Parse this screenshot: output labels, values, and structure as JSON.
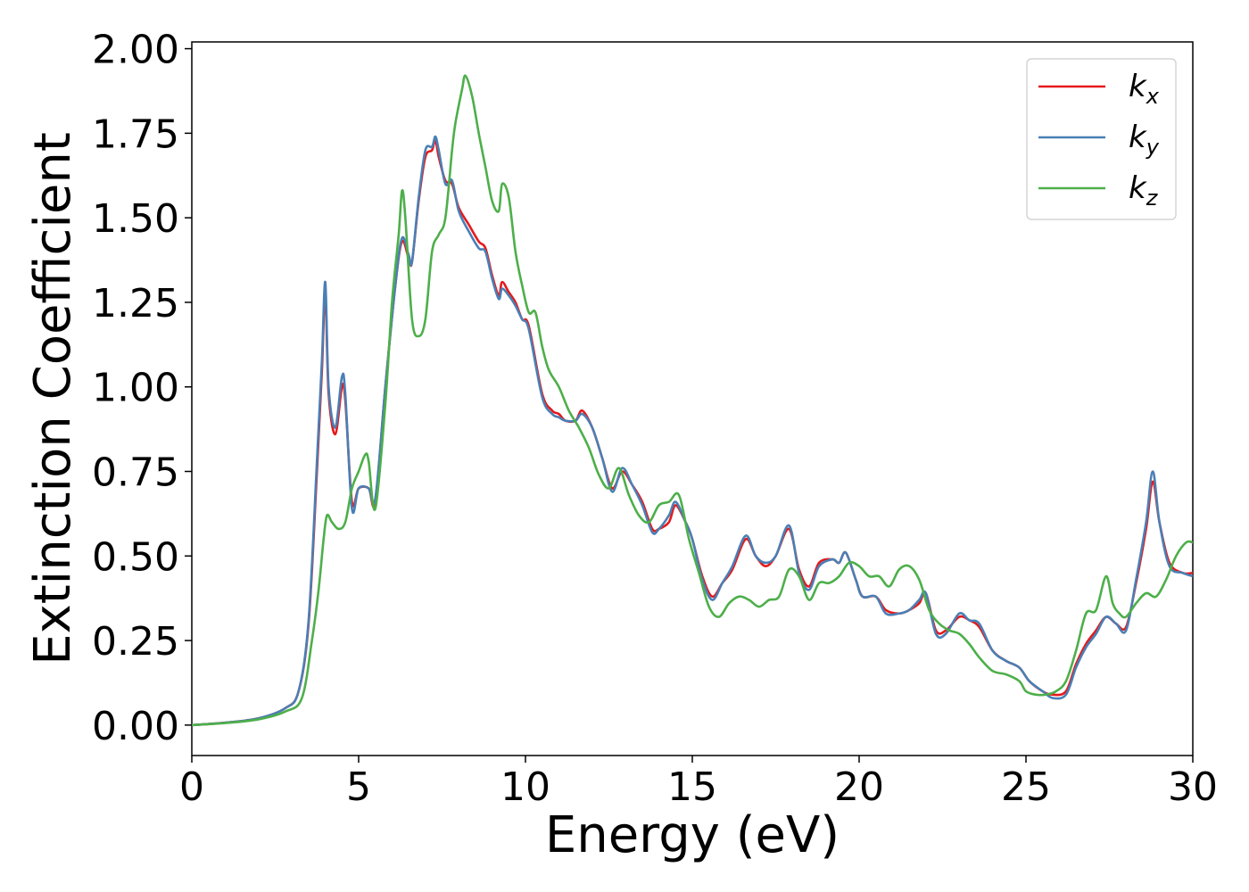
{
  "chart_data": {
    "type": "line",
    "xlabel": "Energy (eV)",
    "ylabel": "Extinction Coefficient",
    "xlim": [
      0,
      30
    ],
    "ylim": [
      -0.09,
      2.02
    ],
    "xticks": [
      0,
      5,
      10,
      15,
      20,
      25,
      30
    ],
    "xtick_labels": [
      "0",
      "5",
      "10",
      "15",
      "20",
      "25",
      "30"
    ],
    "yticks": [
      0.0,
      0.25,
      0.5,
      0.75,
      1.0,
      1.25,
      1.5,
      1.75,
      2.0
    ],
    "ytick_labels": [
      "0.00",
      "0.25",
      "0.50",
      "0.75",
      "1.00",
      "1.25",
      "1.50",
      "1.75",
      "2.00"
    ],
    "grid": false,
    "legend_position": "top-right",
    "series": [
      {
        "name": "k_x",
        "label_base": "k",
        "label_sub": "x",
        "color": "#e41a1c",
        "x": [
          0,
          1,
          2,
          2.8,
          3.2,
          3.5,
          3.75,
          3.9,
          4.0,
          4.1,
          4.3,
          4.5,
          4.6,
          4.8,
          5.0,
          5.3,
          5.5,
          5.8,
          6.1,
          6.3,
          6.5,
          6.6,
          6.8,
          7.0,
          7.2,
          7.3,
          7.4,
          7.6,
          7.8,
          8.0,
          8.3,
          8.6,
          8.8,
          9.0,
          9.2,
          9.3,
          9.5,
          9.7,
          9.9,
          10.1,
          10.5,
          10.8,
          11.0,
          11.2,
          11.5,
          11.7,
          12.0,
          12.3,
          12.6,
          12.9,
          13.2,
          13.5,
          13.8,
          14.0,
          14.3,
          14.5,
          14.8,
          15.0,
          15.3,
          15.6,
          15.9,
          16.2,
          16.6,
          16.9,
          17.2,
          17.5,
          17.9,
          18.2,
          18.5,
          18.8,
          19.2,
          19.4,
          19.6,
          19.9,
          20.1,
          20.5,
          20.8,
          21.2,
          21.5,
          21.8,
          22.0,
          22.3,
          22.6,
          23.0,
          23.3,
          23.6,
          24.0,
          24.4,
          24.8,
          25.1,
          25.5,
          25.8,
          26.2,
          26.5,
          26.8,
          27.1,
          27.4,
          27.7,
          28.0,
          28.3,
          28.6,
          28.8,
          29.0,
          29.3,
          29.7,
          30.0
        ],
        "values": [
          0.0,
          0.007,
          0.02,
          0.05,
          0.1,
          0.3,
          0.75,
          1.05,
          1.28,
          0.98,
          0.86,
          1.0,
          0.96,
          0.66,
          0.7,
          0.7,
          0.66,
          1.0,
          1.3,
          1.43,
          1.38,
          1.37,
          1.55,
          1.68,
          1.7,
          1.73,
          1.68,
          1.61,
          1.6,
          1.53,
          1.48,
          1.43,
          1.41,
          1.33,
          1.27,
          1.31,
          1.28,
          1.25,
          1.2,
          1.18,
          0.98,
          0.93,
          0.92,
          0.9,
          0.9,
          0.93,
          0.88,
          0.79,
          0.7,
          0.75,
          0.71,
          0.66,
          0.58,
          0.58,
          0.6,
          0.65,
          0.6,
          0.55,
          0.44,
          0.38,
          0.42,
          0.46,
          0.55,
          0.5,
          0.47,
          0.5,
          0.58,
          0.46,
          0.41,
          0.48,
          0.49,
          0.48,
          0.51,
          0.43,
          0.38,
          0.38,
          0.34,
          0.33,
          0.34,
          0.36,
          0.39,
          0.28,
          0.28,
          0.32,
          0.31,
          0.29,
          0.22,
          0.19,
          0.17,
          0.13,
          0.1,
          0.09,
          0.1,
          0.18,
          0.24,
          0.28,
          0.32,
          0.3,
          0.29,
          0.42,
          0.58,
          0.72,
          0.6,
          0.48,
          0.45,
          0.45
        ]
      },
      {
        "name": "k_y",
        "label_base": "k",
        "label_sub": "y",
        "color": "#4a7fb5",
        "x": [
          0,
          1,
          2,
          2.8,
          3.2,
          3.5,
          3.75,
          3.9,
          4.0,
          4.1,
          4.3,
          4.5,
          4.6,
          4.8,
          5.0,
          5.3,
          5.5,
          5.8,
          6.1,
          6.3,
          6.5,
          6.6,
          6.8,
          7.0,
          7.2,
          7.3,
          7.4,
          7.6,
          7.8,
          8.0,
          8.3,
          8.6,
          8.8,
          9.0,
          9.2,
          9.3,
          9.5,
          9.7,
          9.9,
          10.1,
          10.5,
          10.8,
          11.0,
          11.2,
          11.5,
          11.7,
          12.0,
          12.3,
          12.6,
          12.9,
          13.2,
          13.5,
          13.8,
          14.0,
          14.3,
          14.5,
          14.8,
          15.0,
          15.3,
          15.6,
          15.9,
          16.2,
          16.6,
          16.9,
          17.2,
          17.5,
          17.9,
          18.2,
          18.5,
          18.8,
          19.2,
          19.4,
          19.6,
          19.9,
          20.1,
          20.5,
          20.8,
          21.2,
          21.5,
          21.8,
          22.0,
          22.3,
          22.6,
          23.0,
          23.3,
          23.6,
          24.0,
          24.4,
          24.8,
          25.1,
          25.5,
          25.8,
          26.2,
          26.5,
          26.8,
          27.1,
          27.4,
          27.7,
          28.0,
          28.3,
          28.6,
          28.8,
          29.0,
          29.3,
          29.7,
          30.0
        ],
        "values": [
          0.0,
          0.007,
          0.02,
          0.05,
          0.1,
          0.31,
          0.78,
          1.08,
          1.31,
          1.0,
          0.88,
          1.03,
          0.98,
          0.64,
          0.7,
          0.7,
          0.67,
          1.0,
          1.3,
          1.44,
          1.39,
          1.37,
          1.56,
          1.7,
          1.71,
          1.74,
          1.7,
          1.6,
          1.61,
          1.52,
          1.46,
          1.41,
          1.4,
          1.32,
          1.26,
          1.29,
          1.27,
          1.24,
          1.2,
          1.17,
          0.97,
          0.92,
          0.91,
          0.9,
          0.9,
          0.92,
          0.88,
          0.79,
          0.69,
          0.76,
          0.71,
          0.65,
          0.57,
          0.58,
          0.62,
          0.66,
          0.6,
          0.55,
          0.43,
          0.37,
          0.42,
          0.47,
          0.56,
          0.5,
          0.48,
          0.5,
          0.59,
          0.45,
          0.4,
          0.47,
          0.49,
          0.48,
          0.51,
          0.43,
          0.38,
          0.38,
          0.33,
          0.33,
          0.34,
          0.37,
          0.39,
          0.27,
          0.27,
          0.33,
          0.31,
          0.3,
          0.22,
          0.19,
          0.17,
          0.13,
          0.1,
          0.08,
          0.09,
          0.17,
          0.23,
          0.27,
          0.32,
          0.3,
          0.28,
          0.43,
          0.6,
          0.75,
          0.6,
          0.47,
          0.45,
          0.44
        ]
      },
      {
        "name": "k_z",
        "label_base": "k",
        "label_sub": "z",
        "color": "#4daf4a",
        "x": [
          0,
          1,
          2,
          2.8,
          3.3,
          3.6,
          3.8,
          3.95,
          4.05,
          4.2,
          4.4,
          4.6,
          4.8,
          5.0,
          5.2,
          5.3,
          5.5,
          5.8,
          6.0,
          6.2,
          6.3,
          6.4,
          6.6,
          6.8,
          7.0,
          7.2,
          7.4,
          7.6,
          7.8,
          7.9,
          8.1,
          8.2,
          8.4,
          8.6,
          8.8,
          9.0,
          9.2,
          9.3,
          9.5,
          9.7,
          9.9,
          10.1,
          10.3,
          10.5,
          10.7,
          11.0,
          11.3,
          11.6,
          11.9,
          12.2,
          12.5,
          12.8,
          13.1,
          13.4,
          13.7,
          14.0,
          14.3,
          14.6,
          14.9,
          15.2,
          15.5,
          15.8,
          16.1,
          16.4,
          16.7,
          17.0,
          17.3,
          17.6,
          17.9,
          18.2,
          18.5,
          18.8,
          19.1,
          19.4,
          19.7,
          20.0,
          20.3,
          20.6,
          20.9,
          21.2,
          21.5,
          21.8,
          22.1,
          22.4,
          22.7,
          23.0,
          23.3,
          23.6,
          24.0,
          24.4,
          24.8,
          25.0,
          25.3,
          25.6,
          25.9,
          26.2,
          26.5,
          26.8,
          27.1,
          27.4,
          27.6,
          27.8,
          28.0,
          28.3,
          28.6,
          28.9,
          29.2,
          29.5,
          29.8,
          30.0
        ],
        "values": [
          0.0,
          0.006,
          0.017,
          0.04,
          0.08,
          0.25,
          0.4,
          0.55,
          0.62,
          0.6,
          0.58,
          0.6,
          0.7,
          0.75,
          0.8,
          0.78,
          0.64,
          0.95,
          1.25,
          1.45,
          1.58,
          1.5,
          1.2,
          1.15,
          1.2,
          1.4,
          1.45,
          1.5,
          1.7,
          1.78,
          1.88,
          1.92,
          1.86,
          1.75,
          1.65,
          1.55,
          1.52,
          1.6,
          1.56,
          1.4,
          1.3,
          1.22,
          1.22,
          1.12,
          1.05,
          1.0,
          0.93,
          0.88,
          0.82,
          0.74,
          0.7,
          0.76,
          0.68,
          0.62,
          0.6,
          0.65,
          0.66,
          0.68,
          0.55,
          0.45,
          0.35,
          0.32,
          0.36,
          0.38,
          0.37,
          0.35,
          0.37,
          0.38,
          0.46,
          0.44,
          0.37,
          0.42,
          0.42,
          0.44,
          0.48,
          0.47,
          0.44,
          0.44,
          0.41,
          0.46,
          0.47,
          0.43,
          0.34,
          0.3,
          0.28,
          0.27,
          0.24,
          0.2,
          0.16,
          0.15,
          0.13,
          0.1,
          0.09,
          0.09,
          0.1,
          0.13,
          0.22,
          0.33,
          0.34,
          0.44,
          0.36,
          0.33,
          0.32,
          0.36,
          0.39,
          0.38,
          0.43,
          0.5,
          0.54,
          0.54
        ]
      }
    ]
  }
}
